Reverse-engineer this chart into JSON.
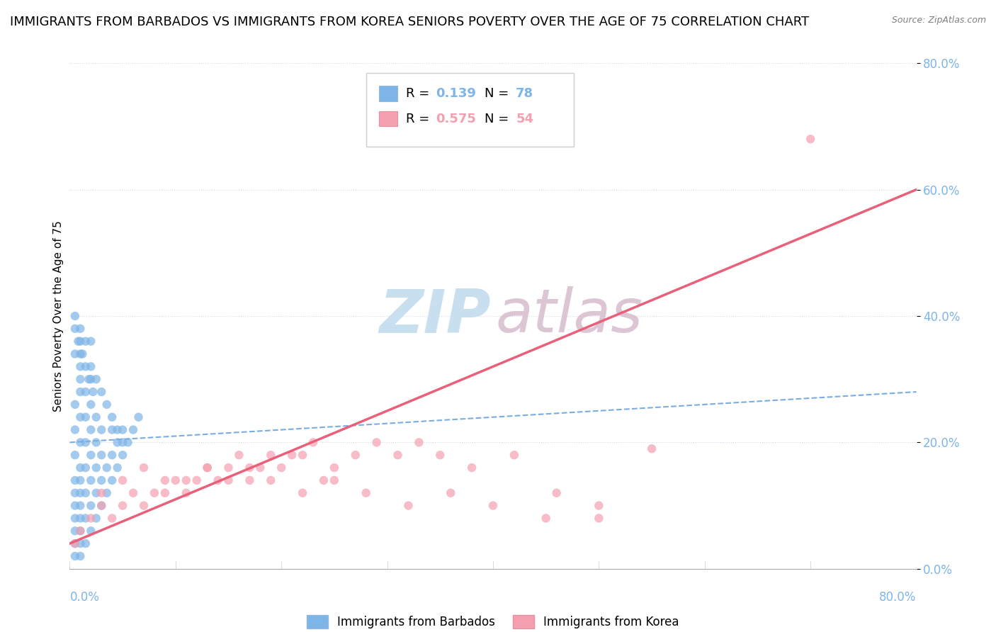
{
  "title": "IMMIGRANTS FROM BARBADOS VS IMMIGRANTS FROM KOREA SENIORS POVERTY OVER THE AGE OF 75 CORRELATION CHART",
  "source": "Source: ZipAtlas.com",
  "xlabel_bottom_left": "0.0%",
  "xlabel_bottom_right": "80.0%",
  "ylabel": "Seniors Poverty Over the Age of 75",
  "ytick_labels": [
    "0.0%",
    "20.0%",
    "40.0%",
    "60.0%",
    "80.0%"
  ],
  "ytick_values": [
    0.0,
    0.2,
    0.4,
    0.6,
    0.8
  ],
  "xlim": [
    0.0,
    0.8
  ],
  "ylim": [
    0.0,
    0.8
  ],
  "barbados_R": 0.139,
  "barbados_N": 78,
  "korea_R": 0.575,
  "korea_N": 54,
  "barbados_color": "#7eb5e8",
  "korea_color": "#f4a0b0",
  "barbados_line_color": "#7aade0",
  "korea_line_color": "#e8607a",
  "watermark_zip_color": "#c8dff0",
  "watermark_atlas_color": "#d4b8c8",
  "background_color": "#ffffff",
  "grid_color": "#e0e8f0",
  "title_fontsize": 13,
  "axis_label_fontsize": 11,
  "tick_fontsize": 12,
  "legend_fontsize": 12,
  "barbados_scatter_x": [
    0.005,
    0.005,
    0.005,
    0.005,
    0.005,
    0.005,
    0.005,
    0.005,
    0.005,
    0.005,
    0.01,
    0.01,
    0.01,
    0.01,
    0.01,
    0.01,
    0.01,
    0.01,
    0.01,
    0.01,
    0.01,
    0.01,
    0.01,
    0.01,
    0.015,
    0.015,
    0.015,
    0.015,
    0.015,
    0.015,
    0.015,
    0.015,
    0.02,
    0.02,
    0.02,
    0.02,
    0.02,
    0.02,
    0.02,
    0.025,
    0.025,
    0.025,
    0.025,
    0.025,
    0.03,
    0.03,
    0.03,
    0.03,
    0.035,
    0.035,
    0.04,
    0.04,
    0.04,
    0.045,
    0.045,
    0.05,
    0.05,
    0.055,
    0.06,
    0.065,
    0.005,
    0.005,
    0.01,
    0.01,
    0.015,
    0.02,
    0.02,
    0.025,
    0.03,
    0.035,
    0.04,
    0.045,
    0.05,
    0.005,
    0.008,
    0.012,
    0.018,
    0.022
  ],
  "barbados_scatter_y": [
    0.02,
    0.04,
    0.06,
    0.08,
    0.1,
    0.12,
    0.14,
    0.18,
    0.22,
    0.26,
    0.02,
    0.04,
    0.06,
    0.08,
    0.1,
    0.12,
    0.14,
    0.16,
    0.2,
    0.24,
    0.28,
    0.3,
    0.32,
    0.36,
    0.04,
    0.08,
    0.12,
    0.16,
    0.2,
    0.24,
    0.28,
    0.32,
    0.06,
    0.1,
    0.14,
    0.18,
    0.22,
    0.26,
    0.3,
    0.08,
    0.12,
    0.16,
    0.2,
    0.24,
    0.1,
    0.14,
    0.18,
    0.22,
    0.12,
    0.16,
    0.14,
    0.18,
    0.22,
    0.16,
    0.2,
    0.18,
    0.22,
    0.2,
    0.22,
    0.24,
    0.34,
    0.38,
    0.34,
    0.38,
    0.36,
    0.32,
    0.36,
    0.3,
    0.28,
    0.26,
    0.24,
    0.22,
    0.2,
    0.4,
    0.36,
    0.34,
    0.3,
    0.28
  ],
  "korea_scatter_x": [
    0.005,
    0.01,
    0.02,
    0.03,
    0.04,
    0.05,
    0.06,
    0.07,
    0.08,
    0.09,
    0.1,
    0.11,
    0.12,
    0.13,
    0.14,
    0.15,
    0.16,
    0.17,
    0.18,
    0.19,
    0.2,
    0.21,
    0.22,
    0.23,
    0.24,
    0.25,
    0.27,
    0.29,
    0.31,
    0.33,
    0.35,
    0.38,
    0.42,
    0.46,
    0.5,
    0.03,
    0.05,
    0.07,
    0.09,
    0.11,
    0.13,
    0.15,
    0.17,
    0.19,
    0.22,
    0.25,
    0.28,
    0.32,
    0.36,
    0.4,
    0.45,
    0.5,
    0.7,
    0.55
  ],
  "korea_scatter_y": [
    0.04,
    0.06,
    0.08,
    0.1,
    0.08,
    0.1,
    0.12,
    0.1,
    0.12,
    0.14,
    0.14,
    0.12,
    0.14,
    0.16,
    0.14,
    0.16,
    0.18,
    0.14,
    0.16,
    0.18,
    0.16,
    0.18,
    0.18,
    0.2,
    0.14,
    0.16,
    0.18,
    0.2,
    0.18,
    0.2,
    0.18,
    0.16,
    0.18,
    0.12,
    0.1,
    0.12,
    0.14,
    0.16,
    0.12,
    0.14,
    0.16,
    0.14,
    0.16,
    0.14,
    0.12,
    0.14,
    0.12,
    0.1,
    0.12,
    0.1,
    0.08,
    0.08,
    0.68,
    0.19
  ],
  "korea_line_x": [
    0.0,
    0.8
  ],
  "korea_line_y": [
    0.04,
    0.6
  ],
  "barbados_line_x": [
    0.0,
    0.8
  ],
  "barbados_line_y": [
    0.2,
    0.28
  ]
}
